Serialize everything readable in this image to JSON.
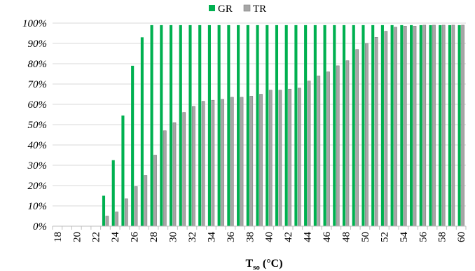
{
  "chart_data": {
    "type": "bar",
    "title": "",
    "xlabel_main": "T",
    "xlabel_sub": "so",
    "xlabel_unit": " (°C)",
    "ylabel": "",
    "ylim": [
      0,
      100
    ],
    "y_ticks": [
      "0%",
      "10%",
      "20%",
      "30%",
      "40%",
      "50%",
      "60%",
      "70%",
      "80%",
      "90%",
      "100%"
    ],
    "grid": true,
    "legend_placement": "top-center",
    "categories": [
      18,
      19,
      20,
      21,
      22,
      23,
      24,
      25,
      26,
      27,
      28,
      29,
      30,
      31,
      32,
      33,
      34,
      35,
      36,
      37,
      38,
      39,
      40,
      41,
      42,
      43,
      44,
      45,
      46,
      47,
      48,
      49,
      50,
      51,
      52,
      53,
      54,
      55,
      56,
      57,
      58,
      59,
      60
    ],
    "x_tick_labels": [
      "18",
      "",
      "20",
      "",
      "22",
      "",
      "24",
      "",
      "26",
      "",
      "28",
      "",
      "30",
      "",
      "32",
      "",
      "34",
      "",
      "36",
      "",
      "38",
      "",
      "40",
      "",
      "42",
      "",
      "44",
      "",
      "46",
      "",
      "48",
      "",
      "50",
      "",
      "52",
      "",
      "54",
      "",
      "56",
      "",
      "58",
      "",
      "60"
    ],
    "series": [
      {
        "name": "GR",
        "color": "#00b050",
        "values": [
          0,
          0,
          0,
          0,
          0,
          15,
          32.5,
          54.5,
          79,
          93,
          99,
          99,
          99,
          99,
          99,
          99,
          99,
          99,
          99,
          99,
          99,
          99,
          99,
          99,
          99,
          99,
          99,
          99,
          99,
          99,
          99,
          99,
          99,
          99,
          99,
          99,
          99,
          99,
          99,
          99,
          99,
          99,
          99
        ]
      },
      {
        "name": "TR",
        "color": "#a6a6a6",
        "values": [
          0,
          0,
          0,
          0,
          0,
          5,
          7,
          13.5,
          19.5,
          25,
          35,
          47,
          51,
          56,
          59,
          61.5,
          62,
          62.5,
          63.5,
          63.5,
          64,
          65,
          67,
          67,
          67.5,
          68,
          71.5,
          74,
          76,
          79,
          81.5,
          87,
          90,
          93,
          96,
          98,
          98.5,
          98.5,
          99,
          99,
          99,
          99,
          99
        ]
      }
    ]
  }
}
